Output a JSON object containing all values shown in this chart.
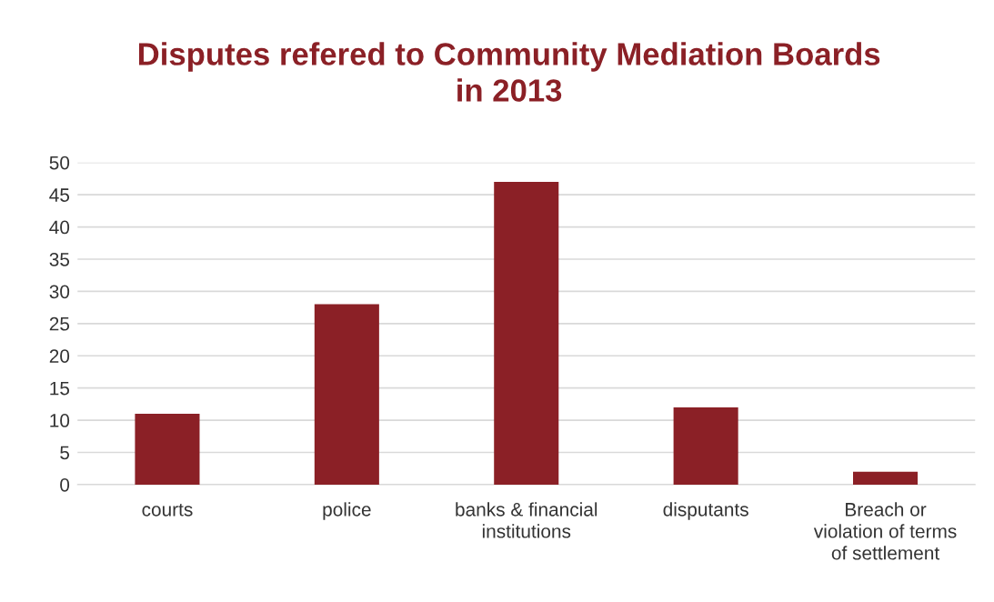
{
  "chart_data": {
    "type": "bar",
    "title": "Disputes refered to Community Mediation Boards in 2013",
    "categories": [
      "courts",
      "police",
      "banks & financial institutions",
      "disputants",
      "Breach or violation of terms of settlement"
    ],
    "values": [
      11,
      28,
      47,
      12,
      2
    ],
    "color": "#8b2026",
    "ylim": [
      0,
      50
    ],
    "yticks": [
      0,
      5,
      10,
      15,
      20,
      25,
      30,
      35,
      40,
      45,
      50
    ],
    "grid": "y",
    "legend": false
  }
}
